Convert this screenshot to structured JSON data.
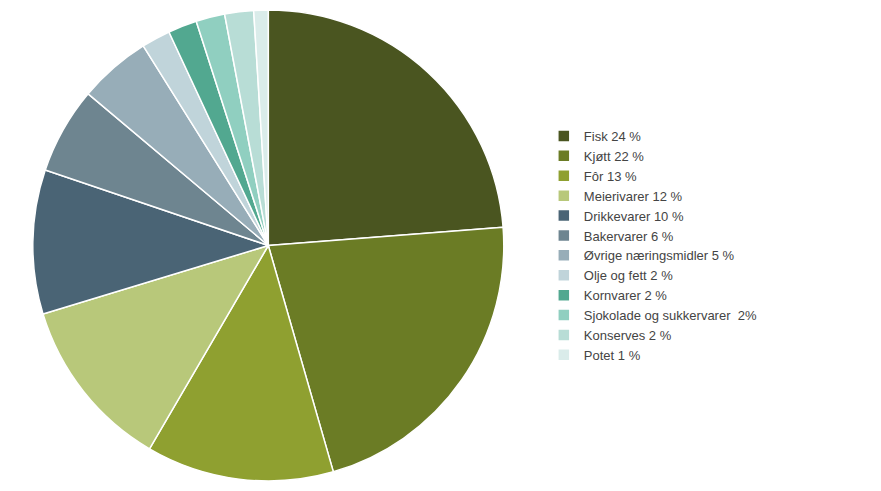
{
  "chart_data": {
    "type": "pie",
    "categories": [
      "Fisk 24 %",
      "Kjøtt 22 %",
      "Fôr 13 %",
      "Meierivarer 12 %",
      "Drikkevarer 10 %",
      "Bakervarer 6 %",
      "Øvrige næringsmidler 5 %",
      "Olje og fett 2 %",
      "Kornvarer 2 %",
      "Sjokolade og sukkervarer  2%",
      "Konserves 2 %",
      "Potet 1 %"
    ],
    "values": [
      24,
      22,
      13,
      12,
      10,
      6,
      5,
      2,
      2,
      2,
      2,
      1
    ],
    "colors": [
      "#4a5520",
      "#6b7c25",
      "#8fa030",
      "#b8c87a",
      "#4a6475",
      "#6e8590",
      "#97adb8",
      "#c0d4da",
      "#52a890",
      "#90cfc0",
      "#b8ddd6",
      "#daecea"
    ],
    "legend": "right"
  }
}
